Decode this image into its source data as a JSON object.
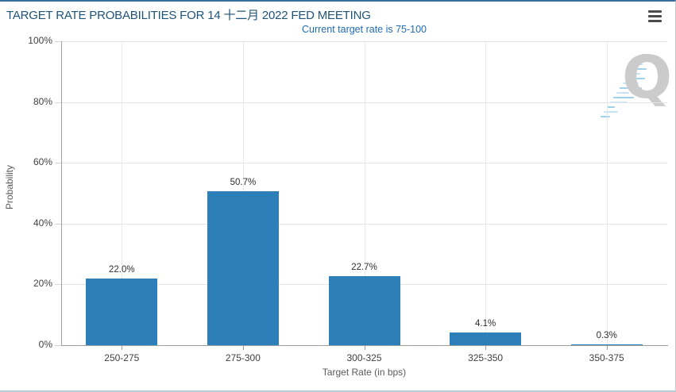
{
  "header": {
    "title": "TARGET RATE PROBABILITIES FOR 14 十二月 2022 FED MEETING",
    "subtitle": "Current target rate is 75-100"
  },
  "menu": {
    "icon": "hamburger-icon"
  },
  "watermark": {
    "letter": "Q"
  },
  "colors": {
    "title_text": "#1f5377",
    "subtitle_text": "#1f6cb5",
    "bar": "#2c7fb9",
    "axis_line": "#9e9e9e",
    "gridline": "#e4e4e4",
    "tick_text": "#3f3f3f",
    "axis_title_text": "#5a5a5a",
    "value_label_text": "#2e2e2e",
    "top_border": "#3a6d9c",
    "bottom_border": "#b9ccd9",
    "watermark_gray": "#cbcbcb",
    "watermark_blue": "#9fd0ec"
  },
  "chart_data": {
    "type": "bar",
    "title": "TARGET RATE PROBABILITIES FOR 14 十二月 2022 FED MEETING",
    "subtitle": "Current target rate is 75-100",
    "categories": [
      "250-275",
      "275-300",
      "300-325",
      "325-350",
      "350-375"
    ],
    "values": [
      22.0,
      50.7,
      22.7,
      4.1,
      0.3
    ],
    "value_labels": [
      "22.0%",
      "50.7%",
      "22.7%",
      "4.1%",
      "0.3%"
    ],
    "xlabel": "Target Rate (in bps)",
    "ylabel": "Probability",
    "ylim": [
      0,
      100
    ],
    "yticks": [
      0,
      20,
      40,
      60,
      80,
      100
    ],
    "ytick_labels": [
      "0%",
      "20%",
      "40%",
      "60%",
      "80%",
      "100%"
    ],
    "grid": true,
    "legend": false,
    "bar_color": "#2c7fb9"
  }
}
